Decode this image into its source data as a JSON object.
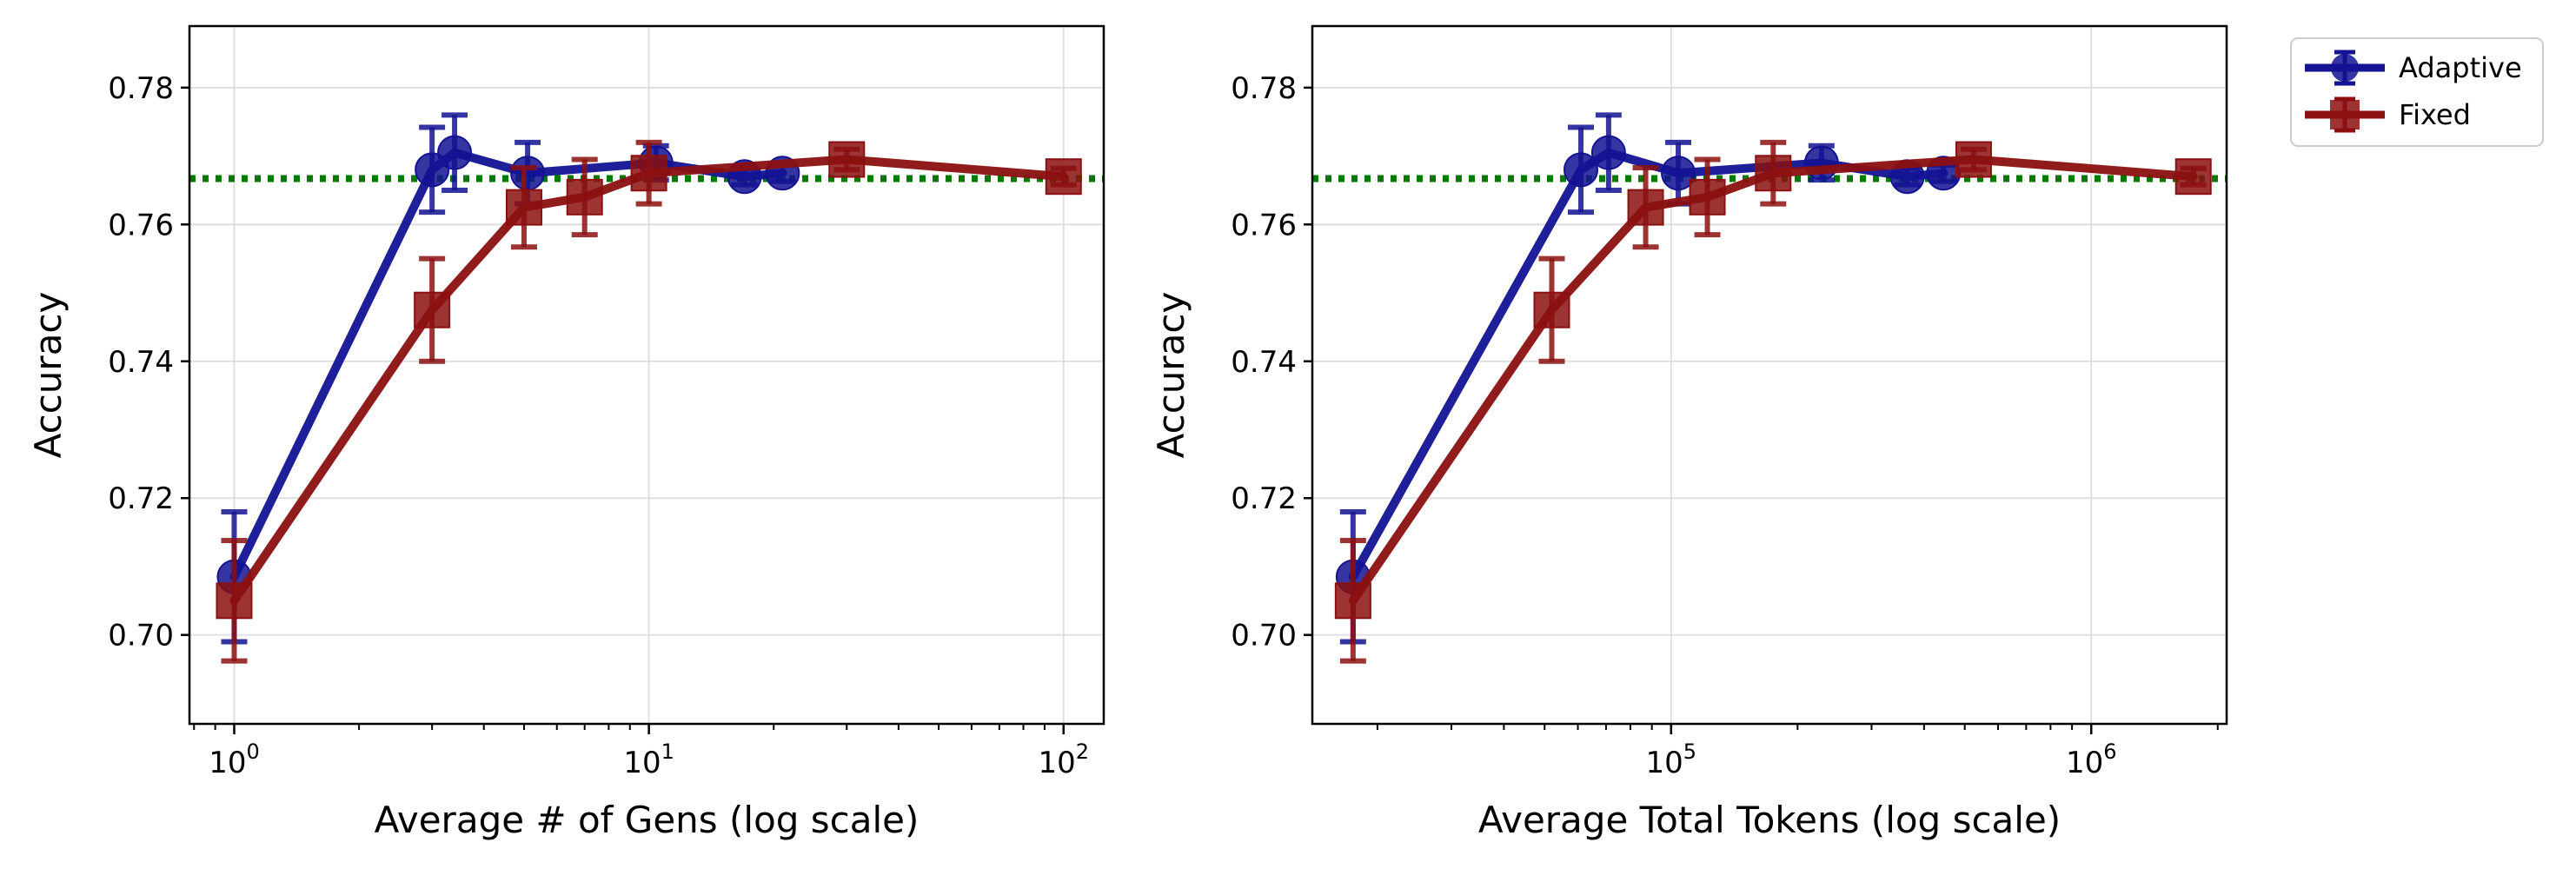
{
  "chart_data": [
    {
      "type": "line",
      "xscale": "log",
      "xlabel": "Average # of Gens (log scale)",
      "ylabel": "Accuracy",
      "xlim": [
        0.78,
        125
      ],
      "ylim": [
        0.687,
        0.789
      ],
      "xticks": [
        {
          "value": 1,
          "base": "10",
          "exp": "0"
        },
        {
          "value": 10,
          "base": "10",
          "exp": "1"
        },
        {
          "value": 100,
          "base": "10",
          "exp": "2"
        }
      ],
      "yticks": [
        0.7,
        0.72,
        0.74,
        0.76,
        0.78
      ],
      "grid": true,
      "reference_line": {
        "y": 0.7667,
        "style": "dotted",
        "color": "#007a00"
      },
      "series": [
        {
          "name": "Adaptive",
          "marker": "circle",
          "color": "#131393",
          "points": [
            {
              "x": 1.0,
              "y": 0.7085,
              "err": 0.0095
            },
            {
              "x": 3.0,
              "y": 0.768,
              "err": 0.0062
            },
            {
              "x": 3.4,
              "y": 0.7705,
              "err": 0.0055
            },
            {
              "x": 5.1,
              "y": 0.7675,
              "err": 0.0045
            },
            {
              "x": 10.4,
              "y": 0.769,
              "err": 0.0025
            },
            {
              "x": 17.0,
              "y": 0.767,
              "err": 0.0012
            },
            {
              "x": 21.0,
              "y": 0.7675,
              "err": 0.0012
            }
          ]
        },
        {
          "name": "Fixed",
          "marker": "square",
          "color": "#8b1010",
          "points": [
            {
              "x": 1.0,
              "y": 0.705,
              "err": 0.0088
            },
            {
              "x": 3.0,
              "y": 0.7475,
              "err": 0.0075
            },
            {
              "x": 5.0,
              "y": 0.7625,
              "err": 0.0058
            },
            {
              "x": 7.0,
              "y": 0.764,
              "err": 0.0055
            },
            {
              "x": 10.0,
              "y": 0.7675,
              "err": 0.0045
            },
            {
              "x": 30.0,
              "y": 0.7695,
              "err": 0.0015
            },
            {
              "x": 100.0,
              "y": 0.767,
              "err": 0.0012
            }
          ]
        }
      ]
    },
    {
      "type": "line",
      "xscale": "log",
      "xlabel": "Average Total Tokens (log scale)",
      "ylabel": "Accuracy",
      "xlim": [
        14000,
        2100000
      ],
      "ylim": [
        0.687,
        0.789
      ],
      "xticks": [
        {
          "value": 100000,
          "base": "10",
          "exp": "5"
        },
        {
          "value": 1000000,
          "base": "10",
          "exp": "6"
        }
      ],
      "yticks": [
        0.7,
        0.72,
        0.74,
        0.76,
        0.78
      ],
      "grid": true,
      "reference_line": {
        "y": 0.7667,
        "style": "dotted",
        "color": "#007a00"
      },
      "series": [
        {
          "name": "Adaptive",
          "marker": "circle",
          "color": "#131393",
          "points": [
            {
              "x": 17500,
              "y": 0.7085,
              "err": 0.0095
            },
            {
              "x": 61000,
              "y": 0.768,
              "err": 0.0062
            },
            {
              "x": 71000,
              "y": 0.7705,
              "err": 0.0055
            },
            {
              "x": 104000,
              "y": 0.7675,
              "err": 0.0045
            },
            {
              "x": 228000,
              "y": 0.769,
              "err": 0.0025
            },
            {
              "x": 365000,
              "y": 0.767,
              "err": 0.0012
            },
            {
              "x": 445000,
              "y": 0.7675,
              "err": 0.0012
            }
          ]
        },
        {
          "name": "Fixed",
          "marker": "square",
          "color": "#8b1010",
          "points": [
            {
              "x": 17500,
              "y": 0.705,
              "err": 0.0088
            },
            {
              "x": 52000,
              "y": 0.7475,
              "err": 0.0075
            },
            {
              "x": 87000,
              "y": 0.7625,
              "err": 0.0058
            },
            {
              "x": 122000,
              "y": 0.764,
              "err": 0.0055
            },
            {
              "x": 175000,
              "y": 0.7675,
              "err": 0.0045
            },
            {
              "x": 525000,
              "y": 0.7695,
              "err": 0.0015
            },
            {
              "x": 1750000,
              "y": 0.767,
              "err": 0.0012
            }
          ]
        }
      ]
    }
  ],
  "legend": {
    "placement": "outside-top-right",
    "entries": [
      {
        "label": "Adaptive",
        "marker": "circle",
        "color": "#131393"
      },
      {
        "label": "Fixed",
        "marker": "square",
        "color": "#8b1010"
      }
    ]
  }
}
